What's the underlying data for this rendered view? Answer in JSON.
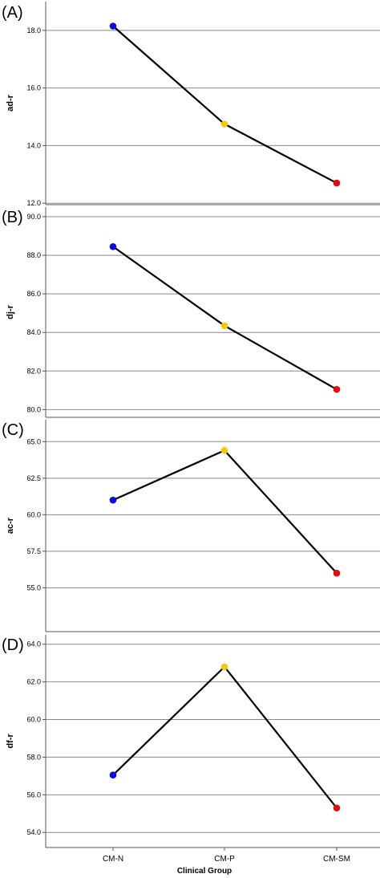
{
  "colors": {
    "line": "#000000",
    "gridline": "#888888",
    "axis": "#555555",
    "group_colors": [
      "#0a0ae6",
      "#f2cc0c",
      "#e60a0a"
    ]
  },
  "x_axis": {
    "title": "Clinical Group",
    "categories": [
      "CM-N",
      "CM-P",
      "CM-SM"
    ]
  },
  "chart_data": [
    {
      "type": "line",
      "panel_label": "(A)",
      "ylabel": "ad-r",
      "categories": [
        "CM-N",
        "CM-P",
        "CM-SM"
      ],
      "values": [
        18.15,
        14.75,
        12.7
      ],
      "ylim": [
        11.95,
        19.0
      ],
      "yticks": [
        12.0,
        14.0,
        16.0,
        18.0
      ],
      "ytick_labels": [
        "12.0",
        "14.0",
        "16.0",
        "18.0"
      ],
      "grid": true
    },
    {
      "type": "line",
      "panel_label": "(B)",
      "ylabel": "dj-r",
      "categories": [
        "CM-N",
        "CM-P",
        "CM-SM"
      ],
      "values": [
        88.45,
        84.35,
        81.05
      ],
      "ylim": [
        79.6,
        90.5
      ],
      "yticks": [
        80.0,
        82.0,
        84.0,
        86.0,
        88.0,
        90.0
      ],
      "ytick_labels": [
        "80.0",
        "82.0",
        "84.0",
        "86.0",
        "88.0",
        "90.0"
      ],
      "grid": true
    },
    {
      "type": "line",
      "panel_label": "(C)",
      "ylabel": "ac-r",
      "categories": [
        "CM-N",
        "CM-P",
        "CM-SM"
      ],
      "values": [
        61.0,
        64.4,
        56.0
      ],
      "ylim": [
        52.0,
        66.5
      ],
      "yticks": [
        55.0,
        57.5,
        60.0,
        62.5,
        65.0
      ],
      "ytick_labels": [
        "55.0",
        "57.5",
        "60.0",
        "62.5",
        "65.0"
      ],
      "grid": true
    },
    {
      "type": "line",
      "panel_label": "(D)",
      "ylabel": "df-r",
      "categories": [
        "CM-N",
        "CM-P",
        "CM-SM"
      ],
      "values": [
        57.05,
        62.8,
        55.3
      ],
      "ylim": [
        53.2,
        64.5
      ],
      "yticks": [
        54.0,
        56.0,
        58.0,
        60.0,
        62.0,
        64.0
      ],
      "ytick_labels": [
        "54.0",
        "56.0",
        "58.0",
        "60.0",
        "62.0",
        "64.0"
      ],
      "grid": true
    }
  ]
}
